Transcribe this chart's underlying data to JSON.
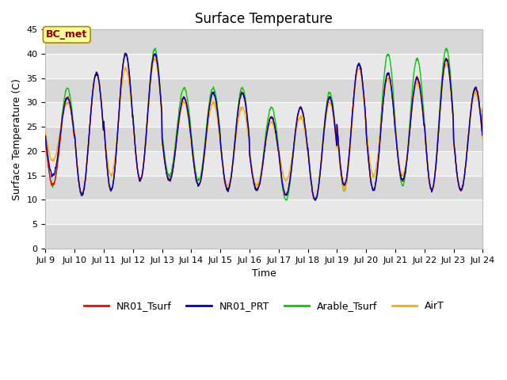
{
  "title": "Surface Temperature",
  "xlabel": "Time",
  "ylabel": "Surface Temperature (C)",
  "ylim": [
    0,
    45
  ],
  "xlim": [
    0,
    360
  ],
  "annotation": "BC_met",
  "plot_bg_color": "#f0f0f0",
  "band_light": "#e8e8e8",
  "band_dark": "#d8d8d8",
  "grid_color": "#cccccc",
  "colors": {
    "NR01_Tsurf": "#ff0000",
    "NR01_PRT": "#0000bb",
    "Arable_Tsurf": "#00cc00",
    "AirT": "#ffaa00"
  },
  "x_tick_labels": [
    "Jul 9",
    "Jul 10",
    "Jul 11",
    "Jul 12",
    "Jul 13",
    "Jul 14",
    "Jul 15",
    "Jul 16",
    "Jul 17",
    "Jul 18",
    "Jul 19",
    "Jul 20",
    "Jul 21",
    "Jul 22",
    "Jul 23",
    "Jul 24"
  ],
  "x_tick_positions": [
    0,
    24,
    48,
    72,
    96,
    120,
    144,
    168,
    192,
    216,
    240,
    264,
    288,
    312,
    336,
    360
  ],
  "yticks": [
    0,
    5,
    10,
    15,
    20,
    25,
    30,
    35,
    40,
    45
  ],
  "figsize": [
    6.4,
    4.8
  ],
  "dpi": 100,
  "title_fontsize": 12,
  "axis_fontsize": 9,
  "tick_fontsize": 8
}
